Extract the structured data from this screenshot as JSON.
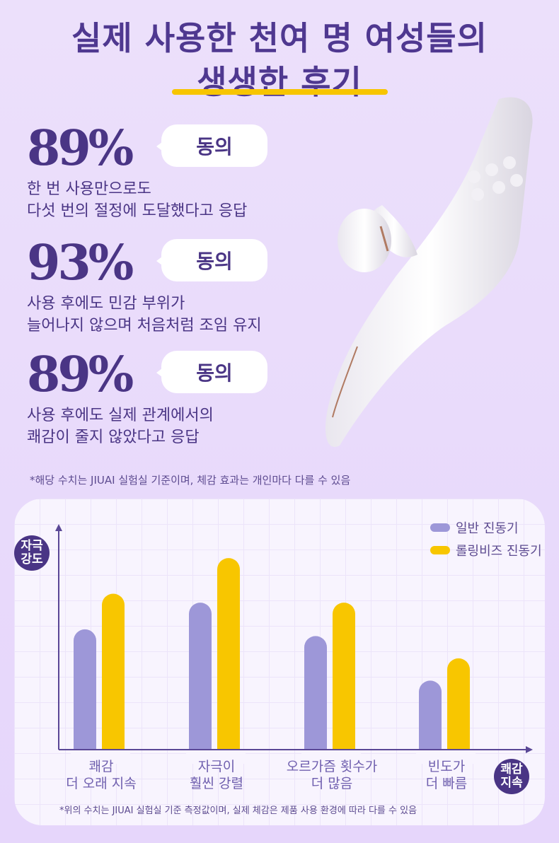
{
  "header": {
    "line1": "실제 사용한 천여 명 여성들의",
    "line2": "생생한 후기"
  },
  "stats": [
    {
      "percent": "89%",
      "badge": "동의",
      "desc1": "한 번 사용만으로도",
      "desc2": "다섯 번의 절정에 도달했다고 응답"
    },
    {
      "percent": "93%",
      "badge": "동의",
      "desc1": "사용 후에도 민감 부위가",
      "desc2": "늘어나지 않으며 처음처럼 조임 유지"
    },
    {
      "percent": "89%",
      "badge": "동의",
      "desc1": "사용 후에도 실제 관계에서의",
      "desc2": "쾌감이 줄지 않았다고 응답"
    }
  ],
  "note_top": "*해당 수치는 JIUAI 실험실 기준이며, 체감 효과는 개인마다 다를 수 있음",
  "colors": {
    "accent": "#4a3585",
    "series1": "#9d97d8",
    "series2": "#f8c600",
    "underline": "#f7c500"
  },
  "chart_data": {
    "type": "bar",
    "ylabel": "자극 강도",
    "xlabel": "쾌감 지속",
    "categories": [
      [
        "쾌감",
        "더 오래 지속"
      ],
      [
        "자극이",
        "훨씬 강렬"
      ],
      [
        "오르가즘 횟수가",
        "더 많음"
      ],
      [
        "빈도가",
        "더 빠름"
      ]
    ],
    "series": [
      {
        "name": "일반 진동기",
        "values": [
          54,
          66,
          51,
          31
        ]
      },
      {
        "name": "롤링비즈 진동기",
        "values": [
          70,
          86,
          66,
          41
        ]
      }
    ],
    "ylim": [
      0,
      100
    ],
    "grid": true,
    "legend": "top-right",
    "note": "*위의 수치는 JIUAI 실험실 기준 측정값이며, 실제 체감은 제품 사용 환경에 따라 다를 수 있음"
  }
}
